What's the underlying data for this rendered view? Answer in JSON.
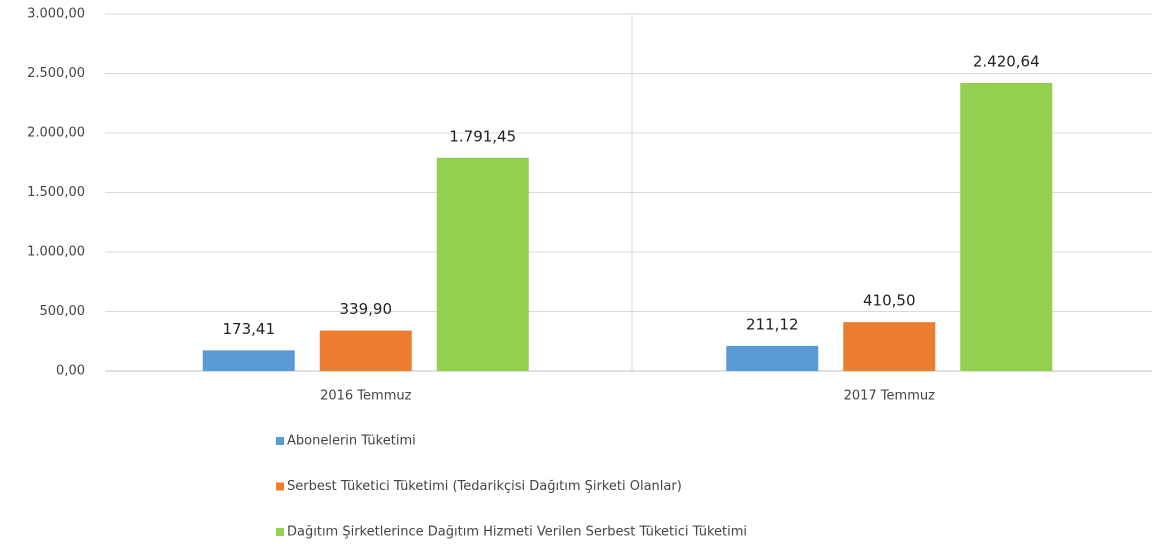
{
  "chart_data": {
    "type": "bar",
    "categories": [
      "2016 Temmuz",
      "2017 Temmuz"
    ],
    "series": [
      {
        "name": "Abonelerin Tüketimi",
        "color": "#5b9bd5",
        "values": [
          173.41,
          211.12
        ],
        "value_labels": [
          "173,41",
          "211,12"
        ]
      },
      {
        "name": "Serbest Tüketici Tüketimi (Tedarikçisi Dağıtım Şirketi Olanlar)",
        "color": "#ed7d31",
        "values": [
          339.9,
          410.5
        ],
        "value_labels": [
          "339,90",
          "410,50"
        ]
      },
      {
        "name": "Dağıtım Şirketlerince Dağıtım Hizmeti Verilen Serbest Tüketici Tüketimi",
        "color": "#92d050",
        "values": [
          1791.45,
          2420.64
        ],
        "value_labels": [
          "1.791,45",
          "2.420,64"
        ]
      }
    ],
    "ylim": [
      0,
      3000
    ],
    "yticks": [
      {
        "value": 0,
        "label": "0,00"
      },
      {
        "value": 500,
        "label": "500,00"
      },
      {
        "value": 1000,
        "label": "1.000,00"
      },
      {
        "value": 1500,
        "label": "1.500,00"
      },
      {
        "value": 2000,
        "label": "2.000,00"
      },
      {
        "value": 2500,
        "label": "2.500,00"
      },
      {
        "value": 3000,
        "label": "3.000,00"
      }
    ],
    "grid": true,
    "legend": "bottom"
  }
}
